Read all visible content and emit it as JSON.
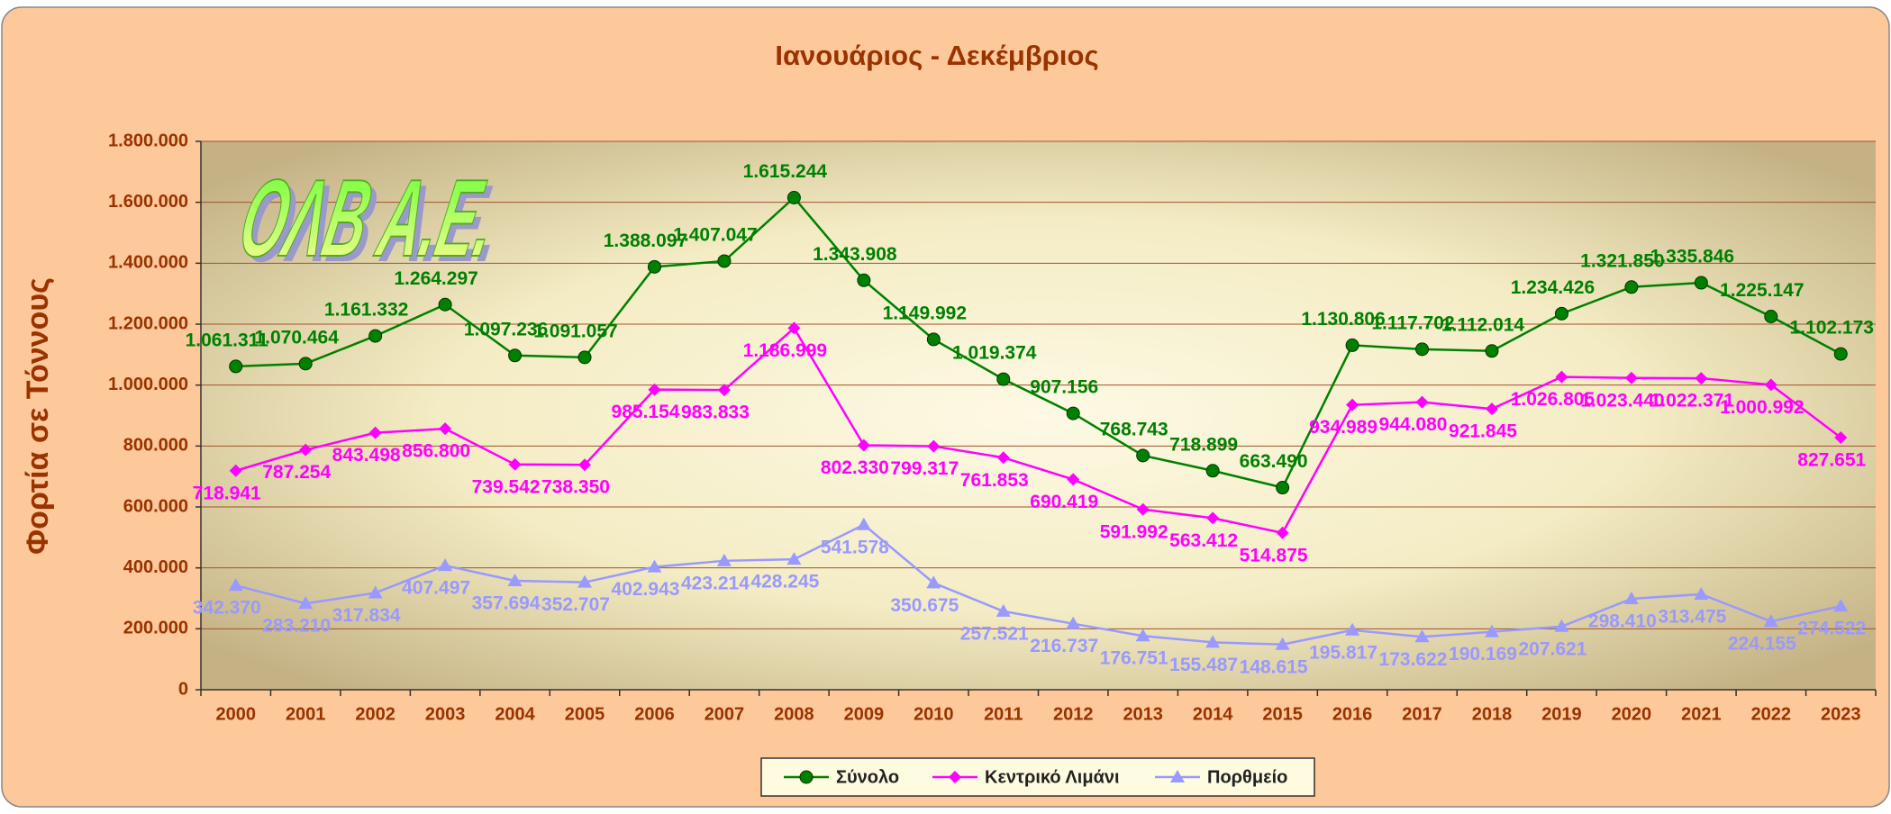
{
  "chart_data": {
    "type": "line",
    "title": "Ιανουάριος - Δεκέμβριος",
    "ylabel": "Φορτία σε Τόννους",
    "logo": "ΟΛΒ Α.Ε.",
    "categories": [
      "2000",
      "2001",
      "2002",
      "2003",
      "2004",
      "2005",
      "2006",
      "2007",
      "2008",
      "2009",
      "2010",
      "2011",
      "2012",
      "2013",
      "2014",
      "2015",
      "2016",
      "2017",
      "2018",
      "2019",
      "2020",
      "2021",
      "2022",
      "2023"
    ],
    "ylim": [
      0,
      1800000
    ],
    "yticks": [
      0,
      {
        "value": 200000,
        "label": "200.000"
      },
      {
        "value": 400000,
        "label": "400.000"
      },
      {
        "value": 600000,
        "label": "600.000"
      },
      {
        "value": 800000,
        "label": "800.000"
      },
      {
        "value": 1000000,
        "label": "1.000.000"
      },
      {
        "value": 1200000,
        "label": "1.200.000"
      },
      {
        "value": 1400000,
        "label": "1.400.000"
      },
      {
        "value": 1600000,
        "label": "1.600.000"
      },
      {
        "value": 1800000,
        "label": "1.800.000"
      }
    ],
    "grid": true,
    "legend": "bottom",
    "series": [
      {
        "name": "Σύνολο",
        "color": "#008000",
        "marker": "circle",
        "values": [
          1061311,
          1070464,
          1161332,
          1264297,
          1097236,
          1091057,
          1388097,
          1407047,
          1615244,
          1343908,
          1149992,
          1019374,
          907156,
          768743,
          718899,
          663490,
          1130806,
          1117702,
          1112014,
          1234426,
          1321850,
          1335846,
          1225147,
          1102173
        ],
        "value_labels": [
          "1.061.311",
          "1.070.464",
          "1.161.332",
          "1.264.297",
          "1.097.236",
          "1.091.057",
          "1.388.097",
          "1.407.047",
          "1.615.244",
          "1.343.908",
          "1.149.992",
          "1.019.374",
          "907.156",
          "768.743",
          "718.899",
          "663.490",
          "1.130.806",
          "1.117.702",
          "1.112.014",
          "1.234.426",
          "1.321.850",
          "1.335.846",
          "1.225.147",
          "1.102.173"
        ]
      },
      {
        "name": "Κεντρικό Λιμάνι",
        "color": "#ff00ff",
        "marker": "diamond",
        "values": [
          718941,
          787254,
          843498,
          856800,
          739542,
          738350,
          985154,
          983833,
          1186999,
          802330,
          799317,
          761853,
          690419,
          591992,
          563412,
          514875,
          934989,
          944080,
          921845,
          1026805,
          1023440,
          1022371,
          1000992,
          827651
        ],
        "value_labels": [
          "718.941",
          "787.254",
          "843.498",
          "856.800",
          "739.542",
          "738.350",
          "985.154",
          "983.833",
          "1.186.999",
          "802.330",
          "799.317",
          "761.853",
          "690.419",
          "591.992",
          "563.412",
          "514.875",
          "934.989",
          "944.080",
          "921.845",
          "1.026.805",
          "1.023.440",
          "1.022.371",
          "1.000.992",
          "827.651"
        ]
      },
      {
        "name": "Πορθμείο",
        "color": "#9999ff",
        "marker": "triangle",
        "values": [
          342370,
          283210,
          317834,
          407497,
          357694,
          352707,
          402943,
          423214,
          428245,
          541578,
          350675,
          257521,
          216737,
          176751,
          155487,
          148615,
          195817,
          173622,
          190169,
          207621,
          298410,
          313475,
          224155,
          274522
        ],
        "value_labels": [
          "342.370",
          "283.210",
          "317.834",
          "407.497",
          "357.694",
          "352.707",
          "402.943",
          "423.214",
          "428.245",
          "541.578",
          "350.675",
          "257.521",
          "216.737",
          "176.751",
          "155.487",
          "148.615",
          "195.817",
          "173.622",
          "190.169",
          "207.621",
          "298.410",
          "313.475",
          "224.155",
          "274.522"
        ]
      }
    ]
  }
}
